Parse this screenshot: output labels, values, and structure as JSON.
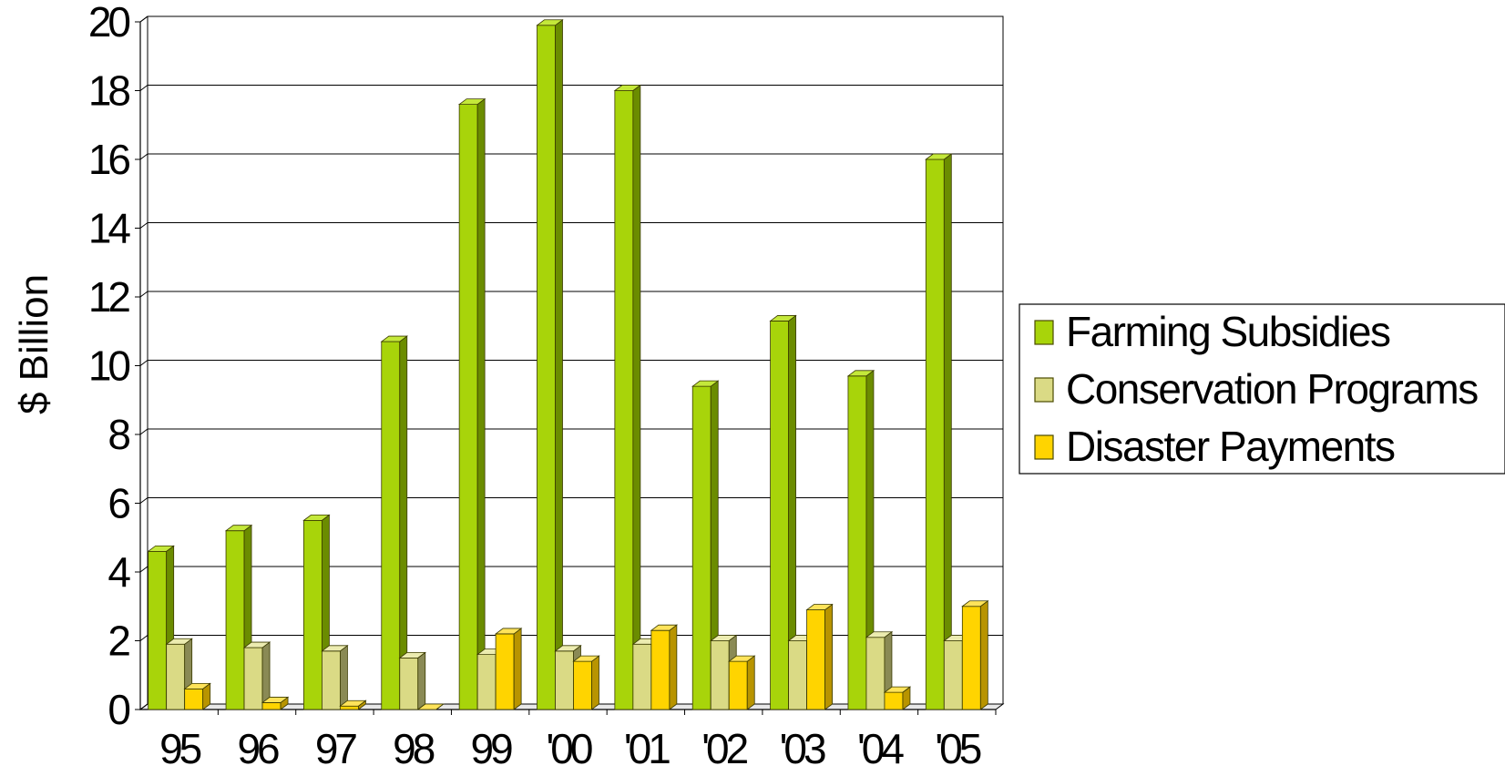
{
  "chart_data": {
    "type": "bar",
    "style": "3d-clustered-column",
    "categories": [
      "95",
      "96",
      "97",
      "98",
      "99",
      "'00",
      "'01",
      "'02",
      "'03",
      "'04",
      "'05"
    ],
    "series": [
      {
        "name": "Farming Subsidies",
        "color": "#a8d40a",
        "side_color": "#6b8c00",
        "top_color": "#c4e83a",
        "values": [
          4.6,
          5.2,
          5.5,
          10.7,
          17.6,
          19.9,
          18.0,
          9.4,
          11.3,
          9.7,
          16.0
        ]
      },
      {
        "name": "Conservation Programs",
        "color": "#dada85",
        "side_color": "#8a8a55",
        "top_color": "#ececb0",
        "values": [
          1.9,
          1.8,
          1.7,
          1.5,
          1.6,
          1.7,
          1.9,
          2.0,
          2.0,
          2.1,
          2.0
        ]
      },
      {
        "name": "Disaster Payments",
        "color": "#ffd400",
        "side_color": "#b89400",
        "top_color": "#ffe35a",
        "values": [
          0.6,
          0.2,
          0.1,
          0.0,
          2.2,
          1.4,
          2.3,
          1.4,
          2.9,
          0.5,
          3.0
        ]
      }
    ],
    "ylabel": "$   Billion",
    "ylim": [
      0,
      20
    ],
    "yticks": [
      0,
      2,
      4,
      6,
      8,
      10,
      12,
      14,
      16,
      18,
      20
    ],
    "grid": true,
    "legend": "right"
  }
}
